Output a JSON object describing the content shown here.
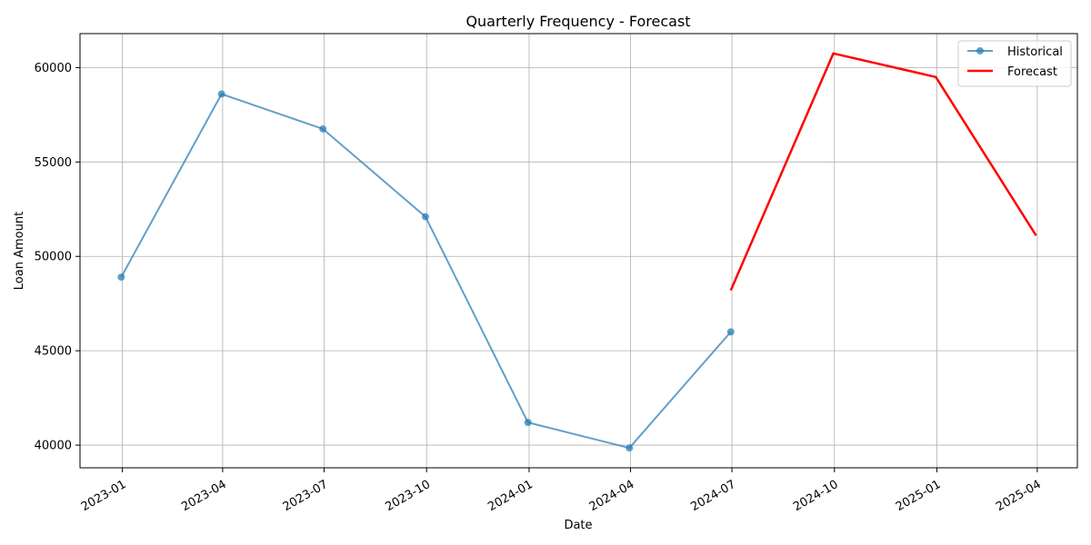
{
  "chart_data": {
    "type": "line",
    "title": "Quarterly Frequency - Forecast",
    "xlabel": "Date",
    "ylabel": "Loan Amount",
    "x_ticks": [
      "2023-01",
      "2023-04",
      "2023-07",
      "2023-10",
      "2024-01",
      "2024-04",
      "2024-07",
      "2024-10",
      "2025-01",
      "2025-04"
    ],
    "y_ticks": [
      40000,
      45000,
      50000,
      55000,
      60000
    ],
    "y_tick_labels": [
      "40000",
      "45000",
      "50000",
      "55000",
      "60000"
    ],
    "ylim": [
      38800,
      61800
    ],
    "xlim": [
      "2022-11-24",
      "2025-05-07"
    ],
    "grid": true,
    "legend_position": "top-right",
    "colors": {
      "historical": "#1f77b4",
      "forecast": "#ff0000",
      "grid": "#b0b0b0"
    },
    "series": [
      {
        "name": "Historical",
        "style": "line-with-markers",
        "x": [
          "2022-12-31",
          "2023-03-31",
          "2023-06-30",
          "2023-09-30",
          "2023-12-31",
          "2024-03-31",
          "2024-06-30"
        ],
        "values": [
          48900,
          58600,
          56750,
          52100,
          41200,
          39850,
          46000
        ]
      },
      {
        "name": "Forecast",
        "style": "line",
        "x": [
          "2024-06-30",
          "2024-09-30",
          "2024-12-31",
          "2025-03-31"
        ],
        "values": [
          48200,
          60750,
          59500,
          51100
        ]
      }
    ]
  }
}
